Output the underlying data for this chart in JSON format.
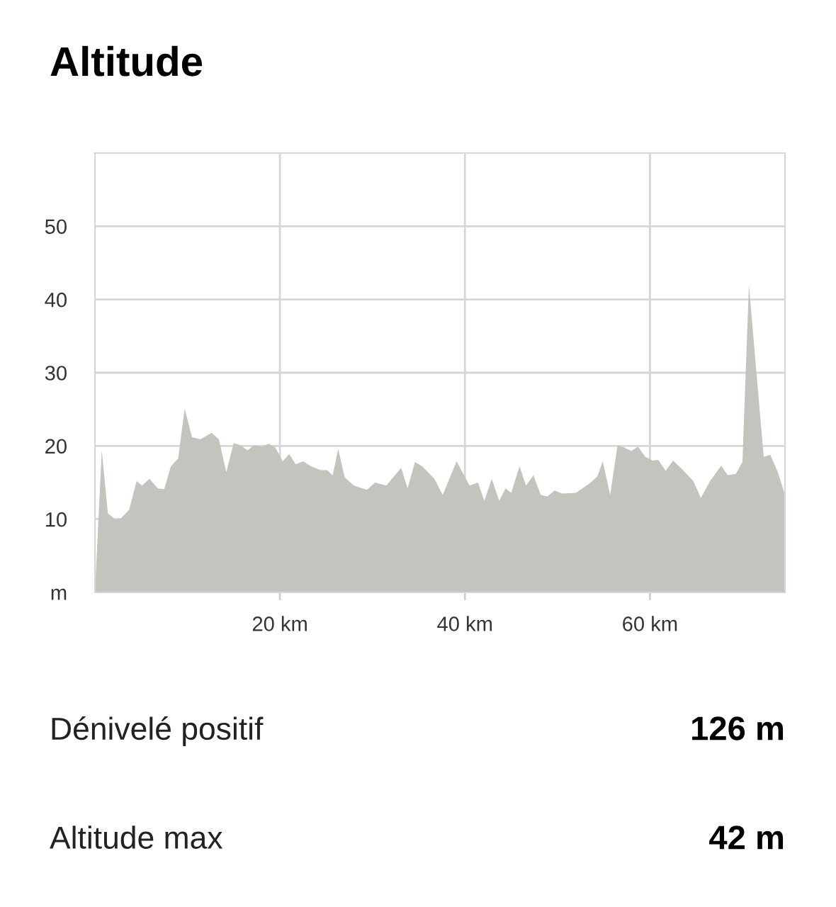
{
  "chart_data": {
    "type": "area",
    "title": "Altitude",
    "x": [
      0,
      0.74,
      1.4,
      2.2,
      2.8,
      3.7,
      4.5,
      5.1,
      5.9,
      6.8,
      7.5,
      8.2,
      9.0,
      9.7,
      10.5,
      11.4,
      12.6,
      13.4,
      14.2,
      15.0,
      15.7,
      16.5,
      17.2,
      18.0,
      18.8,
      19.5,
      20.3,
      21.0,
      21.7,
      22.5,
      23.4,
      24.4,
      25.1,
      25.7,
      26.3,
      27.0,
      28.0,
      29.4,
      30.3,
      31.5,
      33.1,
      33.8,
      34.6,
      35.4,
      36.7,
      37.6,
      39.1,
      40.5,
      41.4,
      42.1,
      42.9,
      43.7,
      44.4,
      45.0,
      45.9,
      46.6,
      47.4,
      48.2,
      48.9,
      49.7,
      50.5,
      52.0,
      53.5,
      54.3,
      54.9,
      55.7,
      56.5,
      57.2,
      58.0,
      58.7,
      59.5,
      60.3,
      60.9,
      61.7,
      62.5,
      63.5,
      64.7,
      65.5,
      66.5,
      67.7,
      68.4,
      69.3,
      70.0,
      70.7,
      71.5,
      72.3,
      73.0,
      73.8,
      74.6
    ],
    "values": [
      0,
      19.4,
      10.8,
      10.0,
      10.1,
      11.3,
      15.2,
      14.6,
      15.5,
      14.2,
      14.1,
      17.2,
      18.3,
      25.1,
      21.2,
      20.9,
      21.8,
      20.9,
      16.4,
      20.4,
      20.1,
      19.4,
      20.1,
      19.9,
      20.3,
      19.8,
      17.9,
      18.9,
      17.5,
      17.9,
      17.2,
      16.7,
      16.7,
      16.0,
      19.6,
      15.7,
      14.6,
      14.0,
      15.0,
      14.6,
      17.0,
      14.2,
      17.8,
      17.2,
      15.5,
      13.3,
      17.9,
      14.6,
      15.0,
      12.5,
      15.5,
      12.5,
      14.2,
      13.6,
      17.2,
      14.6,
      16.0,
      13.3,
      13.1,
      13.9,
      13.5,
      13.6,
      14.9,
      15.8,
      17.9,
      13.3,
      20.1,
      19.8,
      19.3,
      19.9,
      18.5,
      18.0,
      18.1,
      16.6,
      18.0,
      16.8,
      15.2,
      12.9,
      15.2,
      17.3,
      16.0,
      16.2,
      17.8,
      42,
      30.2,
      18.5,
      18.8,
      16.5,
      13.3
    ],
    "color": "#c4c3be",
    "xlim": [
      0,
      74.6
    ],
    "xticks": [
      {
        "value": 20,
        "label": "20 km"
      },
      {
        "value": 40,
        "label": "40 km"
      },
      {
        "value": 60,
        "label": "60 km"
      }
    ],
    "ylim": [
      0,
      60
    ],
    "yticks": [
      {
        "value": 0,
        "label": "m"
      },
      10,
      20,
      30,
      40,
      50
    ],
    "grid": true,
    "annotations": [
      "Dénivelé positif",
      "126 m",
      "Altitude max",
      "42 m"
    ]
  }
}
